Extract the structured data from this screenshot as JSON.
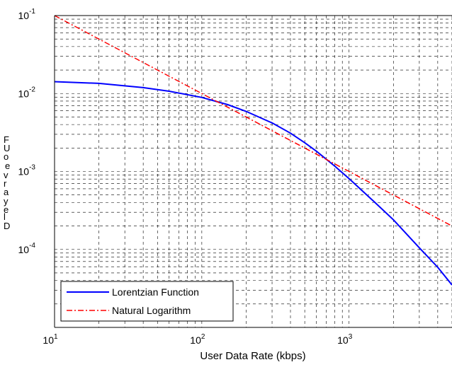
{
  "chart_data": {
    "type": "line",
    "xlabel": "User Data Rate (kbps)",
    "ylabel_letters": [
      "F",
      "U",
      "o",
      "e",
      "v",
      "r",
      "a",
      "y",
      "e",
      "l",
      "D"
    ],
    "x_scale": "log",
    "y_scale": "log",
    "xlim": [
      10,
      5000
    ],
    "ylim": [
      1e-05,
      0.1
    ],
    "x_ticks": [
      {
        "base": "10",
        "exp": "1",
        "value": 10
      },
      {
        "base": "10",
        "exp": "2",
        "value": 100
      },
      {
        "base": "10",
        "exp": "3",
        "value": 1000
      }
    ],
    "y_ticks": [
      {
        "base": "10",
        "exp": "-1",
        "value": 0.1
      },
      {
        "base": "10",
        "exp": "-2",
        "value": 0.01
      },
      {
        "base": "10",
        "exp": "-3",
        "value": 0.001
      },
      {
        "base": "10",
        "exp": "-4",
        "value": 0.0001
      }
    ],
    "grid": true,
    "legend_position": "bottom-left",
    "series": [
      {
        "name": "Lorentzian Function",
        "color": "#0000ff",
        "style": "solid",
        "x": [
          10,
          20,
          40,
          60,
          100,
          150,
          200,
          300,
          400,
          500,
          600,
          800,
          1000,
          1500,
          2000,
          3000,
          4000,
          5000
        ],
        "y": [
          0.0142,
          0.0135,
          0.0119,
          0.0107,
          0.0089,
          0.0072,
          0.0059,
          0.0042,
          0.0031,
          0.00234,
          0.00182,
          0.00117,
          0.00081,
          0.0004,
          0.00024,
          0.000105,
          5.9e-05,
          3.5e-05
        ]
      },
      {
        "name": "Natural Logarithm",
        "color": "#ff0000",
        "style": "dashdot",
        "x": [
          10,
          100,
          1000,
          5000
        ],
        "y": [
          0.1,
          0.01,
          0.001,
          0.0002
        ]
      }
    ]
  }
}
